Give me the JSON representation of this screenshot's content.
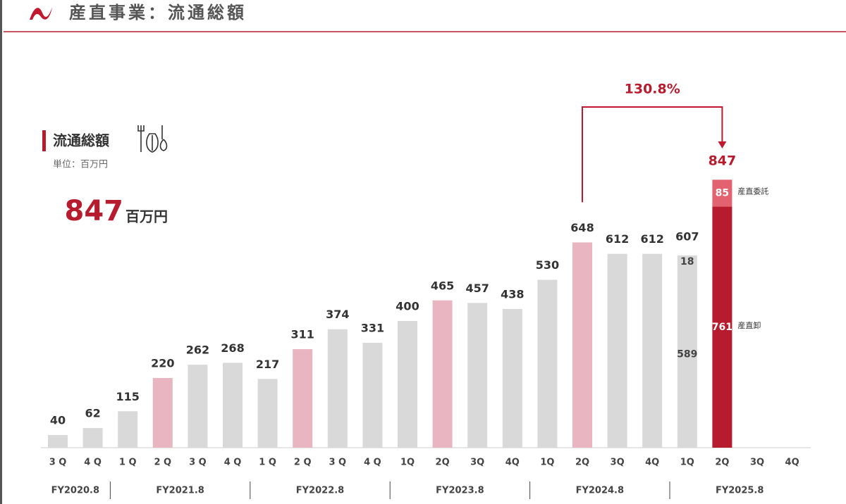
{
  "header": {
    "title": "産直事業：流通総額"
  },
  "panel": {
    "heading": "流通総額",
    "unit": "単位：百万円",
    "highlight": {
      "value": 847,
      "unit": "百万円"
    }
  },
  "chart_data": {
    "type": "bar",
    "groups": [
      {
        "label": "FY2020.8",
        "quarters": [
          "3 Q",
          "4 Q"
        ]
      },
      {
        "label": "FY2021.8",
        "quarters": [
          "1 Q",
          "2 Q",
          "3 Q",
          "4 Q"
        ]
      },
      {
        "label": "FY2022.8",
        "quarters": [
          "1 Q",
          "2 Q",
          "3 Q",
          "4 Q"
        ]
      },
      {
        "label": "FY2023.8",
        "quarters": [
          "1Q",
          "2Q",
          "3Q",
          "4Q"
        ]
      },
      {
        "label": "FY2024.8",
        "quarters": [
          "1Q",
          "2Q",
          "3Q",
          "4Q"
        ]
      },
      {
        "label": "FY2025.8",
        "quarters": [
          "1Q",
          "2Q",
          "3Q",
          "4Q"
        ]
      }
    ],
    "values": [
      40,
      62,
      115,
      220,
      262,
      268,
      217,
      311,
      374,
      331,
      400,
      465,
      457,
      438,
      530,
      648,
      612,
      612,
      607,
      847,
      null,
      null
    ],
    "colors": [
      "#d9d9d9",
      "#d9d9d9",
      "#d9d9d9",
      "#e8b5c0",
      "#d9d9d9",
      "#d9d9d9",
      "#d9d9d9",
      "#e8b5c0",
      "#d9d9d9",
      "#d9d9d9",
      "#d9d9d9",
      "#e8b5c0",
      "#d9d9d9",
      "#d9d9d9",
      "#d9d9d9",
      "#e8b5c0",
      "#d9d9d9",
      "#d9d9d9",
      null,
      null,
      null,
      null
    ],
    "series": [
      {
        "name": "産直卸",
        "values": [
          null,
          null,
          null,
          null,
          null,
          null,
          null,
          null,
          null,
          null,
          null,
          null,
          null,
          null,
          null,
          null,
          null,
          null,
          589,
          761,
          null,
          null
        ],
        "colors": [
          null,
          null,
          null,
          null,
          null,
          null,
          null,
          null,
          null,
          null,
          null,
          null,
          null,
          null,
          null,
          null,
          null,
          null,
          "#d9d9d9",
          "#b71c2e",
          null,
          null
        ]
      },
      {
        "name": "産直委託",
        "values": [
          null,
          null,
          null,
          null,
          null,
          null,
          null,
          null,
          null,
          null,
          null,
          null,
          null,
          null,
          null,
          null,
          null,
          null,
          18,
          85,
          null,
          null
        ],
        "colors": [
          null,
          null,
          null,
          null,
          null,
          null,
          null,
          null,
          null,
          null,
          null,
          null,
          null,
          null,
          null,
          null,
          null,
          null,
          "#d9d9d9",
          "#e2636f",
          null,
          null
        ]
      }
    ],
    "annotation": "130.8%",
    "ylim": [
      0,
      900
    ]
  }
}
